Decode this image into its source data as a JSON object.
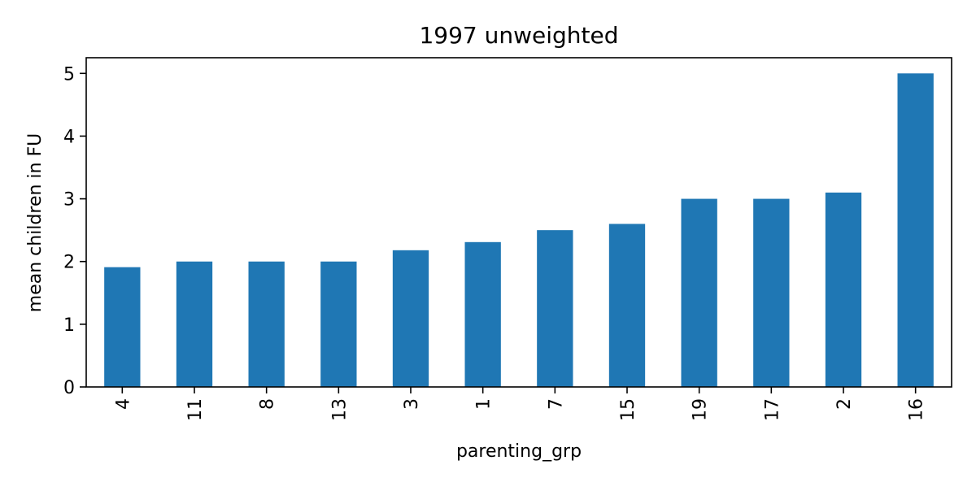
{
  "chart_data": {
    "type": "bar",
    "title": "1997 unweighted",
    "xlabel": "parenting_grp",
    "ylabel": "mean children in FU",
    "categories": [
      "4",
      "11",
      "8",
      "13",
      "3",
      "1",
      "7",
      "15",
      "19",
      "17",
      "2",
      "16"
    ],
    "values": [
      1.91,
      2.0,
      2.0,
      2.0,
      2.18,
      2.31,
      2.5,
      2.6,
      3.0,
      3.0,
      3.1,
      5.0
    ],
    "ylim": [
      0,
      5.25
    ],
    "yticks": [
      0,
      1,
      2,
      3,
      4,
      5
    ],
    "grid": false,
    "legend": "none",
    "colors": {
      "bar": "#1f77b4",
      "axes": "#000000",
      "background": "#ffffff"
    }
  }
}
